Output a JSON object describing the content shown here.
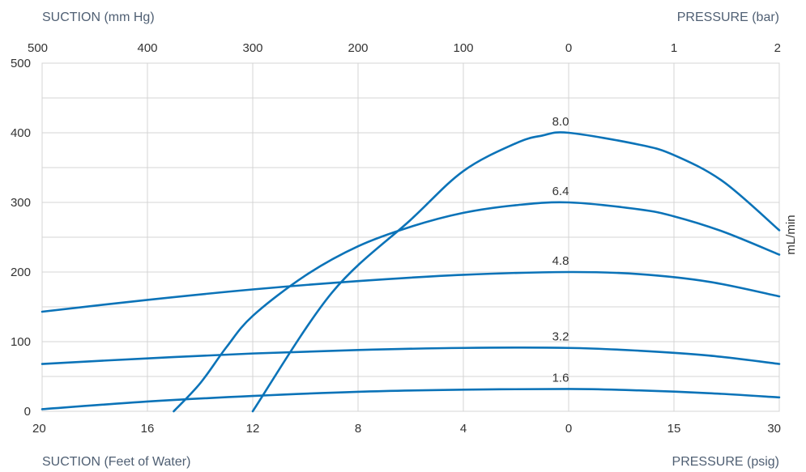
{
  "chart_data": {
    "type": "line",
    "title": "",
    "labels": {
      "top_left": "SUCTION (mm Hg)",
      "top_right": "PRESSURE (bar)",
      "bottom_left": "SUCTION (Feet of Water)",
      "bottom_right": "PRESSURE (psig)",
      "right_y": "mL/min"
    },
    "y_axis": {
      "ticks": [
        "0",
        "100",
        "200",
        "300",
        "400",
        "500"
      ],
      "ylim": [
        0,
        500
      ],
      "unit_label": "mL/min"
    },
    "x_axis_bottom": {
      "ticks": [
        "20",
        "16",
        "12",
        "8",
        "4",
        "0",
        "15",
        "30"
      ]
    },
    "x_axis_top": {
      "ticks": [
        "500",
        "400",
        "300",
        "200",
        "100",
        "0",
        "1",
        "2"
      ]
    },
    "grid": true,
    "colors": {
      "curve": "#0b73b8",
      "grid": "#d4d4d4",
      "axis_title": "#4f5f73",
      "tick_text": "#333333"
    },
    "series": [
      {
        "label": "8.0",
        "points": [
          {
            "x": -12,
            "y": 0
          },
          {
            "x": -9,
            "y": 170
          },
          {
            "x": -6,
            "y": 275
          },
          {
            "x": -4,
            "y": 345
          },
          {
            "x": -2,
            "y": 385
          },
          {
            "x": -1,
            "y": 396
          },
          {
            "x": 0,
            "y": 400
          },
          {
            "x": 10,
            "y": 383
          },
          {
            "x": 15,
            "y": 368
          },
          {
            "x": 22,
            "y": 330
          },
          {
            "x": 30,
            "y": 260
          }
        ]
      },
      {
        "label": "6.4",
        "points": [
          {
            "x": -15,
            "y": 0
          },
          {
            "x": -14,
            "y": 40
          },
          {
            "x": -13,
            "y": 92
          },
          {
            "x": -12,
            "y": 137
          },
          {
            "x": -10,
            "y": 195
          },
          {
            "x": -8,
            "y": 237
          },
          {
            "x": -6,
            "y": 265
          },
          {
            "x": -4,
            "y": 285
          },
          {
            "x": -2,
            "y": 296
          },
          {
            "x": 0,
            "y": 300
          },
          {
            "x": 10,
            "y": 290
          },
          {
            "x": 15,
            "y": 280
          },
          {
            "x": 22,
            "y": 258
          },
          {
            "x": 30,
            "y": 225
          }
        ]
      },
      {
        "label": "4.8",
        "points": [
          {
            "x": -20,
            "y": 143
          },
          {
            "x": -16,
            "y": 160
          },
          {
            "x": -12,
            "y": 175
          },
          {
            "x": -8,
            "y": 187
          },
          {
            "x": -4,
            "y": 196
          },
          {
            "x": 0,
            "y": 200
          },
          {
            "x": 10,
            "y": 197
          },
          {
            "x": 20,
            "y": 186
          },
          {
            "x": 30,
            "y": 165
          }
        ]
      },
      {
        "label": "3.2",
        "points": [
          {
            "x": -20,
            "y": 68
          },
          {
            "x": -16,
            "y": 76
          },
          {
            "x": -12,
            "y": 83
          },
          {
            "x": -8,
            "y": 88
          },
          {
            "x": -4,
            "y": 91
          },
          {
            "x": 0,
            "y": 91
          },
          {
            "x": 10,
            "y": 87
          },
          {
            "x": 20,
            "y": 80
          },
          {
            "x": 30,
            "y": 68
          }
        ]
      },
      {
        "label": "1.6",
        "points": [
          {
            "x": -20,
            "y": 3
          },
          {
            "x": -16,
            "y": 14
          },
          {
            "x": -12,
            "y": 22
          },
          {
            "x": -8,
            "y": 28
          },
          {
            "x": -4,
            "y": 31
          },
          {
            "x": 0,
            "y": 32
          },
          {
            "x": 10,
            "y": 30
          },
          {
            "x": 20,
            "y": 26
          },
          {
            "x": 30,
            "y": 20
          }
        ]
      }
    ]
  }
}
